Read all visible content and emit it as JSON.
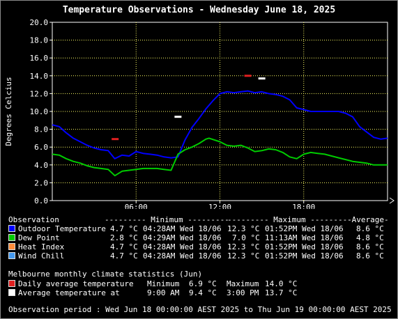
{
  "colors": {
    "background": "#000000",
    "grid": "#ffff66",
    "axis_text": "#ffffff",
    "outdoor_temperature": "#0000ff",
    "dew_point": "#00cc00",
    "heat_index": "#ff8c3a",
    "wind_chill": "#4499ee",
    "daily_avg_marker": "#e02020",
    "avg_temp_marker": "#ffffff"
  },
  "chart_data": {
    "type": "line",
    "title": "Temperature Observations - Wednesday June 18, 2025",
    "ylabel": "Degrees Celcius",
    "xlabel": "",
    "ylim": [
      0,
      20
    ],
    "xlim": [
      0,
      24
    ],
    "yticks": [
      "0.0",
      "2.0",
      "4.0",
      "6.0",
      "8.0",
      "10.0",
      "12.0",
      "14.0",
      "16.0",
      "18.0",
      "20.0"
    ],
    "xticks": [
      {
        "x": 6,
        "label": "06:00"
      },
      {
        "x": 12,
        "label": "12:00"
      },
      {
        "x": 18,
        "label": "18:00"
      }
    ],
    "grid": true,
    "series": [
      {
        "name": "Outdoor Temperature",
        "color": "#0000ff",
        "x": [
          0,
          0.5,
          1,
          1.5,
          2,
          2.5,
          3,
          3.5,
          4,
          4.47,
          5,
          5.5,
          6,
          6.5,
          7,
          7.5,
          8,
          8.5,
          9,
          9.5,
          10,
          10.5,
          11,
          11.5,
          12,
          12.5,
          13,
          13.5,
          14,
          14.5,
          15,
          15.5,
          16,
          16.5,
          17,
          17.5,
          18,
          18.5,
          19,
          19.5,
          20,
          20.5,
          21,
          21.5,
          22,
          22.5,
          23,
          23.5,
          24
        ],
        "y": [
          8.5,
          8.3,
          7.6,
          7.0,
          6.6,
          6.2,
          5.9,
          5.7,
          5.6,
          4.7,
          5.1,
          5.0,
          5.5,
          5.3,
          5.2,
          5.1,
          4.9,
          4.8,
          4.9,
          6.8,
          8.2,
          9.2,
          10.3,
          11.2,
          12.0,
          12.2,
          12.1,
          12.2,
          12.3,
          12.1,
          12.2,
          12.0,
          11.9,
          11.7,
          11.3,
          10.4,
          10.2,
          10.0,
          10.0,
          10.0,
          10.0,
          10.0,
          9.8,
          9.4,
          8.3,
          7.7,
          7.1,
          6.9,
          7.0
        ]
      },
      {
        "name": "Dew Point",
        "color": "#00cc00",
        "x": [
          0,
          0.5,
          1,
          1.5,
          2,
          2.5,
          3,
          3.5,
          4,
          4.48,
          5,
          5.5,
          6,
          6.5,
          7,
          7.5,
          8,
          8.5,
          9,
          9.5,
          10,
          10.5,
          11,
          11.22,
          12,
          12.5,
          13,
          13.5,
          14,
          14.5,
          15,
          15.5,
          16,
          16.5,
          17,
          17.5,
          18,
          18.5,
          19,
          19.5,
          20,
          20.5,
          21,
          21.5,
          22,
          22.5,
          23,
          23.5,
          24
        ],
        "y": [
          5.2,
          5.1,
          4.7,
          4.4,
          4.2,
          3.9,
          3.7,
          3.6,
          3.5,
          2.8,
          3.3,
          3.4,
          3.5,
          3.6,
          3.6,
          3.6,
          3.5,
          3.4,
          5.2,
          5.7,
          6.0,
          6.4,
          6.9,
          7.0,
          6.6,
          6.2,
          6.1,
          6.2,
          5.9,
          5.5,
          5.6,
          5.8,
          5.7,
          5.4,
          4.9,
          4.7,
          5.2,
          5.4,
          5.3,
          5.2,
          5.0,
          4.8,
          4.6,
          4.4,
          4.3,
          4.2,
          4.0,
          4.0,
          4.0
        ]
      }
    ],
    "markers": [
      {
        "name": "Daily average temperature",
        "x": 14.0,
        "y": 14.0,
        "color": "#e02020"
      },
      {
        "name": "Daily average temperature",
        "x": 4.5,
        "y": 6.9,
        "color": "#e02020"
      },
      {
        "name": "Average temperature at",
        "x": 15.0,
        "y": 13.7,
        "color": "#ffffff"
      },
      {
        "name": "Average temperature at",
        "x": 9.0,
        "y": 9.4,
        "color": "#ffffff"
      }
    ]
  },
  "legend": {
    "header": {
      "observation": "Observation",
      "minimum": "--------- Minimum ---------",
      "maximum": "--------- Maximum ---------",
      "average": "-Average-"
    },
    "rows": [
      {
        "label": "Outdoor Temperature",
        "min": "4.7 °C",
        "min_time": "04:28AM Wed 18/06",
        "max": "12.3 °C",
        "max_time": "01:52PM Wed 18/06",
        "avg": "8.6 °C",
        "color": "#0000ff"
      },
      {
        "label": "Dew Point",
        "min": "2.8 °C",
        "min_time": "04:29AM Wed 18/06",
        "max": "7.0 °C",
        "max_time": "11:13AM Wed 18/06",
        "avg": "4.8 °C",
        "color": "#00cc00"
      },
      {
        "label": "Heat Index",
        "min": "4.7 °C",
        "min_time": "04:28AM Wed 18/06",
        "max": "12.3 °C",
        "max_time": "01:52PM Wed 18/06",
        "avg": "8.6 °C",
        "color": "#ff8c3a"
      },
      {
        "label": "Wind Chill",
        "min": "4.7 °C",
        "min_time": "04:28AM Wed 18/06",
        "max": "12.3 °C",
        "max_time": "01:52PM Wed 18/06",
        "avg": "8.6 °C",
        "color": "#4499ee"
      }
    ]
  },
  "climate": {
    "heading": "Melbourne monthly climate statistics (Jun)",
    "daily_avg_label": "Daily average temperature",
    "daily_min_label": "Minimum",
    "daily_min_value": "6.9 °C",
    "daily_max_label": "Maximum",
    "daily_max_value": "14.0 °C",
    "avg_at_label": "Average temperature at",
    "avg_at_time1": "9:00 AM",
    "avg_at_value1": "9.4 °C",
    "avg_at_time2": "3:00 PM",
    "avg_at_value2": "13.7 °C"
  },
  "observation_period": "Observation period : Wed Jun 18 00:00:00 AEST 2025 to Thu Jun 19 00:00:00 AEST 2025"
}
